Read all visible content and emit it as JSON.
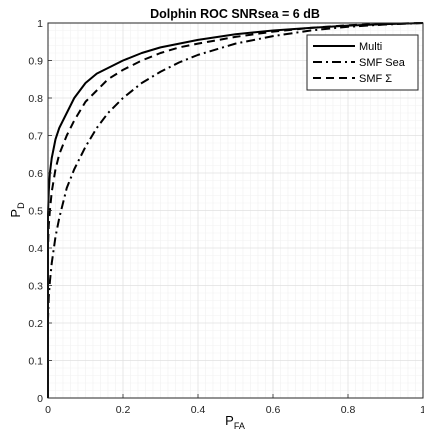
{
  "chart_data": {
    "type": "line",
    "title": "Dolphin ROC SNRsea = 6 dB",
    "xlabel": {
      "main": "P",
      "sub": "FA"
    },
    "ylabel": {
      "main": "P",
      "sub": "D"
    },
    "xlim": [
      0,
      1
    ],
    "ylim": [
      0,
      1
    ],
    "x_ticks": [
      0,
      0.2,
      0.4,
      0.6,
      0.8,
      1
    ],
    "x_tick_labels": [
      "0",
      "0.2",
      "0.4",
      "0.6",
      "0.8",
      "1"
    ],
    "y_ticks": [
      0,
      0.1,
      0.2,
      0.3,
      0.4,
      0.5,
      0.6,
      0.7,
      0.8,
      0.9,
      1
    ],
    "y_tick_labels": [
      "0",
      "0.1",
      "0.2",
      "0.3",
      "0.4",
      "0.5",
      "0.6",
      "0.7",
      "0.8",
      "0.9",
      "1"
    ],
    "grid": true,
    "minor_grid": true,
    "legend_position": "top-right",
    "series": [
      {
        "name": "Multi",
        "dash": "solid",
        "x": [
          0,
          0,
          0.002,
          0.005,
          0.01,
          0.02,
          0.03,
          0.05,
          0.07,
          0.1,
          0.13,
          0.16,
          0.2,
          0.25,
          0.3,
          0.35,
          0.4,
          0.5,
          0.6,
          0.7,
          0.8,
          0.9,
          1.0
        ],
        "y": [
          0,
          0.49,
          0.55,
          0.6,
          0.64,
          0.69,
          0.72,
          0.76,
          0.8,
          0.84,
          0.865,
          0.88,
          0.9,
          0.92,
          0.935,
          0.945,
          0.955,
          0.97,
          0.98,
          0.987,
          0.993,
          0.997,
          1.0
        ]
      },
      {
        "name": "SMF Sea",
        "dash": "dash-dot",
        "x": [
          0,
          0,
          0.002,
          0.005,
          0.01,
          0.02,
          0.03,
          0.05,
          0.07,
          0.1,
          0.13,
          0.16,
          0.2,
          0.25,
          0.3,
          0.35,
          0.4,
          0.5,
          0.6,
          0.7,
          0.8,
          0.9,
          1.0
        ],
        "y": [
          0,
          0.21,
          0.27,
          0.31,
          0.36,
          0.43,
          0.48,
          0.56,
          0.61,
          0.67,
          0.72,
          0.76,
          0.8,
          0.84,
          0.87,
          0.895,
          0.915,
          0.945,
          0.965,
          0.98,
          0.99,
          0.996,
          1.0
        ]
      },
      {
        "name": "SMF Σ",
        "dash": "dashed",
        "x": [
          0,
          0,
          0.002,
          0.005,
          0.01,
          0.02,
          0.03,
          0.05,
          0.07,
          0.1,
          0.13,
          0.16,
          0.2,
          0.25,
          0.3,
          0.35,
          0.4,
          0.5,
          0.6,
          0.7,
          0.8,
          0.9,
          1.0
        ],
        "y": [
          0,
          0.4,
          0.46,
          0.5,
          0.55,
          0.61,
          0.65,
          0.7,
          0.74,
          0.79,
          0.82,
          0.85,
          0.875,
          0.9,
          0.92,
          0.935,
          0.945,
          0.963,
          0.977,
          0.987,
          0.994,
          0.998,
          1.0
        ]
      }
    ],
    "colors": {
      "line": "#000000",
      "major_grid": "#e1e1e1",
      "minor_grid": "#f1f1f1",
      "axes": "#262626"
    }
  }
}
